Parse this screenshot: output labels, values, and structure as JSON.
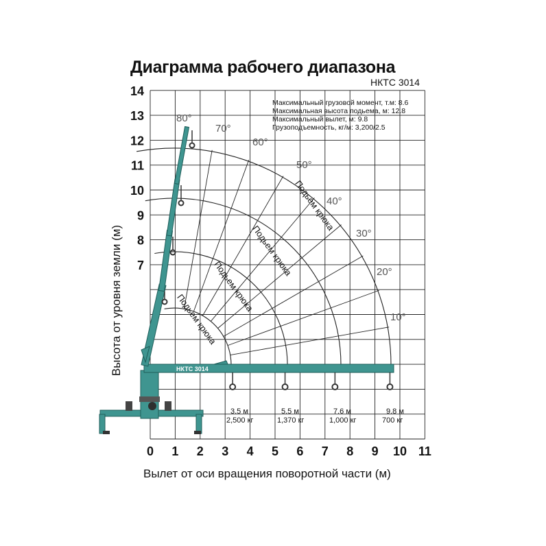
{
  "title": "Диаграмма рабочего диапазона",
  "model": "НКТС 3014",
  "boom_label": "НКТС 3014",
  "specs": [
    "Максимальный грузовой момент, т.м: 8.6",
    "Максимальная высота подьема, м: 12.8",
    "Максимальный вылет, м: 9.8",
    "Грузоподъемность, кг/м: 3,200/2.5"
  ],
  "axes": {
    "ylabel": "Высота от уровня земли (м)",
    "xlabel": "Вылет от оси вращения поворотной части (м)",
    "x_ticks": [
      "0",
      "1",
      "2",
      "3",
      "4",
      "5",
      "6",
      "7",
      "8",
      "9",
      "10",
      "11"
    ],
    "y_ticks": [
      "7",
      "8",
      "9",
      "10",
      "11",
      "12",
      "13",
      "14"
    ],
    "xlim": [
      0,
      11
    ],
    "ylim": [
      0,
      14
    ]
  },
  "angles": [
    "80°",
    "70°",
    "60°",
    "50°",
    "40°",
    "30°",
    "20°",
    "10°"
  ],
  "hook_text": "Подьем крюка",
  "positions": [
    {
      "reach": "3.5 м",
      "load": "2,500 кг"
    },
    {
      "reach": "5.5 м",
      "load": "1,370 кг"
    },
    {
      "reach": "7.6 м",
      "load": "1,000 кг"
    },
    {
      "reach": "9.8 м",
      "load": "700 кг"
    }
  ],
  "colors": {
    "boom": "#3f9590",
    "boom_dark": "#1f5e5a",
    "grid": "#222222",
    "angle_text": "#555555"
  }
}
